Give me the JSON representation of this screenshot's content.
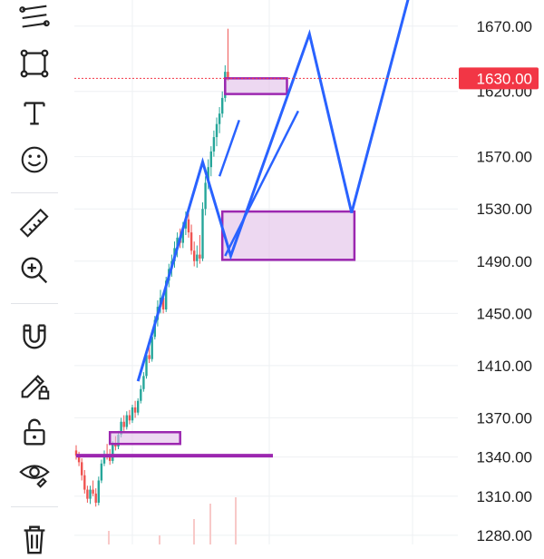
{
  "toolbar": {
    "tools": [
      {
        "name": "trend-line-tools-icon"
      },
      {
        "name": "rectangle-tool-icon"
      },
      {
        "name": "text-tool-icon"
      },
      {
        "name": "emoji-sticker-icon"
      },
      {
        "name": "ruler-measure-icon"
      },
      {
        "name": "zoom-in-icon"
      },
      {
        "name": "magnet-icon"
      },
      {
        "name": "lock-drawing-pencil-icon"
      },
      {
        "name": "unlock-icon"
      },
      {
        "name": "hide-eye-icon"
      },
      {
        "name": "trash-icon"
      }
    ]
  },
  "colors": {
    "up": "#26a69a",
    "down": "#ef5350",
    "annotation_line": "#2962ff",
    "zone_fill": "#e1bee7",
    "zone_stroke": "#9c27b0",
    "support_line": "#9c27b0",
    "price_badge": "#f23645",
    "grid": "#eef0f3"
  },
  "chart_data": {
    "type": "candlestick",
    "y_axis_labels": [
      "1670.00",
      "1620.00",
      "1570.00",
      "1530.00",
      "1490.00",
      "1450.00",
      "1410.00",
      "1370.00",
      "1340.00",
      "1310.00",
      "1280.00"
    ],
    "current_price": "1630.00",
    "ylim": [
      1273,
      1690
    ],
    "ohlc": [
      [
        1345,
        1349,
        1338,
        1341
      ],
      [
        1341,
        1344,
        1333,
        1336
      ],
      [
        1336,
        1339,
        1322,
        1326
      ],
      [
        1326,
        1330,
        1312,
        1315
      ],
      [
        1315,
        1318,
        1305,
        1308
      ],
      [
        1308,
        1318,
        1304,
        1315
      ],
      [
        1315,
        1322,
        1310,
        1312
      ],
      [
        1312,
        1316,
        1302,
        1305
      ],
      [
        1305,
        1325,
        1303,
        1322
      ],
      [
        1322,
        1338,
        1320,
        1335
      ],
      [
        1335,
        1345,
        1333,
        1342
      ],
      [
        1342,
        1350,
        1338,
        1340
      ],
      [
        1340,
        1346,
        1334,
        1337
      ],
      [
        1337,
        1352,
        1335,
        1350
      ],
      [
        1350,
        1356,
        1345,
        1348
      ],
      [
        1348,
        1360,
        1346,
        1357
      ],
      [
        1357,
        1370,
        1355,
        1367
      ],
      [
        1367,
        1372,
        1360,
        1363
      ],
      [
        1363,
        1375,
        1361,
        1372
      ],
      [
        1372,
        1376,
        1365,
        1368
      ],
      [
        1368,
        1380,
        1366,
        1378
      ],
      [
        1378,
        1383,
        1370,
        1374
      ],
      [
        1374,
        1385,
        1372,
        1383
      ],
      [
        1383,
        1395,
        1381,
        1392
      ],
      [
        1392,
        1405,
        1390,
        1402
      ],
      [
        1402,
        1420,
        1400,
        1418
      ],
      [
        1418,
        1428,
        1412,
        1415
      ],
      [
        1415,
        1435,
        1413,
        1432
      ],
      [
        1432,
        1448,
        1430,
        1445
      ],
      [
        1445,
        1460,
        1440,
        1455
      ],
      [
        1455,
        1468,
        1450,
        1462
      ],
      [
        1462,
        1465,
        1450,
        1453
      ],
      [
        1453,
        1478,
        1451,
        1475
      ],
      [
        1475,
        1488,
        1470,
        1484
      ],
      [
        1484,
        1495,
        1478,
        1490
      ],
      [
        1490,
        1505,
        1485,
        1500
      ],
      [
        1500,
        1512,
        1493,
        1508
      ],
      [
        1508,
        1515,
        1500,
        1504
      ],
      [
        1504,
        1520,
        1500,
        1515
      ],
      [
        1515,
        1528,
        1510,
        1522
      ],
      [
        1522,
        1530,
        1508,
        1512
      ],
      [
        1512,
        1518,
        1495,
        1498
      ],
      [
        1498,
        1505,
        1486,
        1490
      ],
      [
        1490,
        1502,
        1485,
        1495
      ],
      [
        1495,
        1510,
        1488,
        1492
      ],
      [
        1492,
        1535,
        1490,
        1530
      ],
      [
        1530,
        1555,
        1525,
        1550
      ],
      [
        1550,
        1568,
        1545,
        1562
      ],
      [
        1562,
        1578,
        1555,
        1574
      ],
      [
        1574,
        1590,
        1570,
        1585
      ],
      [
        1585,
        1600,
        1578,
        1595
      ],
      [
        1595,
        1608,
        1588,
        1603
      ],
      [
        1603,
        1620,
        1600,
        1615
      ],
      [
        1615,
        1640,
        1612,
        1635
      ],
      [
        1635,
        1668,
        1628,
        1630
      ]
    ],
    "annotations": {
      "demand_zones": [
        {
          "x0": 12,
          "x1": 37,
          "y0": 1359,
          "y1": 1350
        },
        {
          "x0": 52,
          "x1": 99,
          "y0": 1528,
          "y1": 1491
        },
        {
          "x0": 53,
          "x1": 75,
          "y0": 1630,
          "y1": 1618
        }
      ],
      "support_line": {
        "x0": 0,
        "x1": 70,
        "y": 1341
      },
      "projection_path": [
        [
          22,
          1398
        ],
        [
          45,
          1566
        ],
        [
          55,
          1494
        ],
        [
          83,
          1664
        ],
        [
          98,
          1527
        ],
        [
          120,
          1706
        ],
        [
          124,
          1696
        ]
      ],
      "channel_lines": [
        [
          [
            51,
            1555
          ],
          [
            58,
            1598
          ]
        ],
        [
          [
            53,
            1494
          ],
          [
            79,
            1605
          ]
        ]
      ]
    }
  }
}
